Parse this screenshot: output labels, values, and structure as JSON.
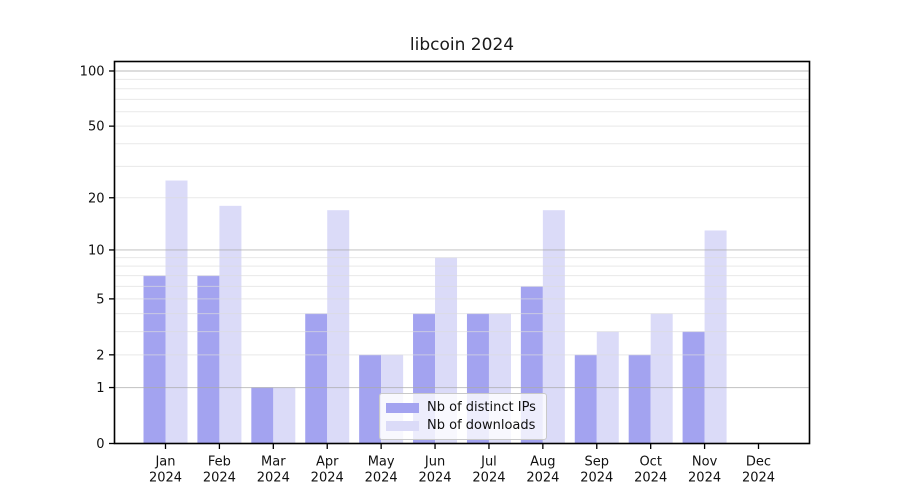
{
  "title": "libcoin 2024",
  "chart_data": {
    "type": "bar",
    "title": "libcoin 2024",
    "categories": [
      "Jan",
      "Feb",
      "Mar",
      "Apr",
      "May",
      "Jun",
      "Jul",
      "Aug",
      "Sep",
      "Oct",
      "Nov",
      "Dec"
    ],
    "category_year": "2024",
    "series": [
      {
        "name": "Nb of distinct IPs",
        "color": "#a3a3f0",
        "values": [
          7,
          7,
          1,
          4,
          2,
          4,
          4,
          6,
          2,
          2,
          3,
          0
        ]
      },
      {
        "name": "Nb of downloads",
        "color": "#dbdbf8",
        "values": [
          25,
          18,
          1,
          17,
          2,
          9,
          4,
          17,
          3,
          4,
          13,
          0
        ]
      }
    ],
    "yscale": "log1p",
    "ylim": [
      0,
      112.6
    ],
    "y_ticks": [
      0,
      1,
      2,
      5,
      10,
      20,
      50,
      100
    ],
    "y_major_gridlines": [
      1,
      10,
      100
    ],
    "y_minor_gridlines": [
      2,
      3,
      4,
      5,
      6,
      7,
      8,
      9,
      20,
      30,
      40,
      50,
      60,
      70,
      80,
      90
    ],
    "grid": true,
    "legend_position": "lower center",
    "xlabel": "",
    "ylabel": ""
  },
  "colors": {
    "bar_ips": "#a3a3f0",
    "bar_downloads": "#dbdbf8",
    "grid_major": "#ababab",
    "grid_minor": "#dcdcdc",
    "axis": "#000000",
    "text": "#111111",
    "background": "#ffffff"
  }
}
